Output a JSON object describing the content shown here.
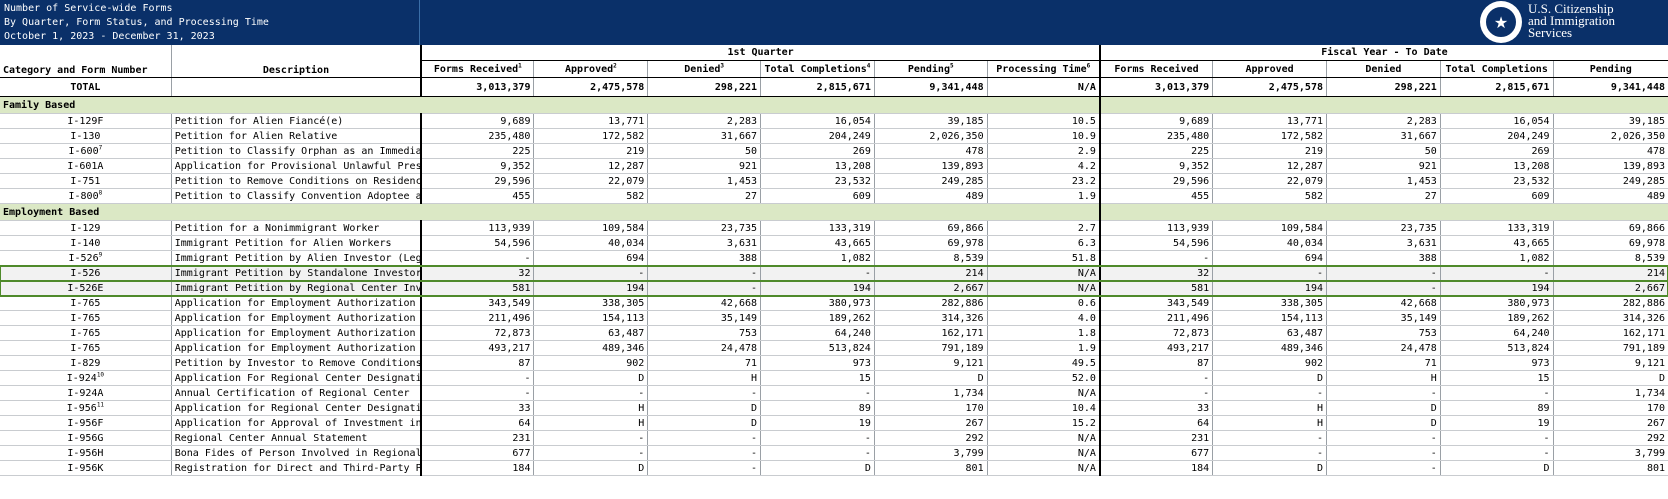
{
  "report": {
    "title_lines": [
      "Number of Service-wide Forms",
      "By Quarter, Form Status, and Processing Time",
      "October 1, 2023 - December 31, 2023"
    ],
    "agency": [
      "U.S. Citizenship",
      "and Immigration",
      "Services"
    ]
  },
  "headers": {
    "category": "Category and Form Number",
    "description": "Description",
    "quarter_group": "1st Quarter",
    "fy_group": "Fiscal Year - To Date",
    "q_cols": [
      "Forms Received",
      "Approved",
      "Denied",
      "Total Completions",
      "Pending",
      "Processing Time"
    ],
    "q_sups": [
      "1",
      "2",
      "3",
      "4",
      "5",
      "6"
    ],
    "fy_cols": [
      "Forms Received",
      "Approved",
      "Denied",
      "Total Completions",
      "Pending"
    ]
  },
  "total": {
    "label": "TOTAL",
    "q": [
      "3,013,379",
      "2,475,578",
      "298,221",
      "2,815,671",
      "9,341,448",
      "N/A"
    ],
    "fy": [
      "3,013,379",
      "2,475,578",
      "298,221",
      "2,815,671",
      "9,341,448"
    ]
  },
  "sections": [
    {
      "name": "Family Based",
      "rows": [
        {
          "form": "I-129F",
          "sup": "",
          "desc": "Petition for Alien Fiancé(e)",
          "q": [
            "9,689",
            "13,771",
            "2,283",
            "16,054",
            "39,185",
            "10.5"
          ],
          "fy": [
            "9,689",
            "13,771",
            "2,283",
            "16,054",
            "39,185"
          ]
        },
        {
          "form": "I-130",
          "sup": "",
          "desc": "Petition for Alien Relative",
          "q": [
            "235,480",
            "172,582",
            "31,667",
            "204,249",
            "2,026,350",
            "10.9"
          ],
          "fy": [
            "235,480",
            "172,582",
            "31,667",
            "204,249",
            "2,026,350"
          ]
        },
        {
          "form": "I-600",
          "sup": "7",
          "desc": "Petition to Classify Orphan as an Immedia",
          "q": [
            "225",
            "219",
            "50",
            "269",
            "478",
            "2.9"
          ],
          "fy": [
            "225",
            "219",
            "50",
            "269",
            "478"
          ]
        },
        {
          "form": "I-601A",
          "sup": "",
          "desc": "Application for Provisional Unlawful Pres",
          "q": [
            "9,352",
            "12,287",
            "921",
            "13,208",
            "139,893",
            "4.2"
          ],
          "fy": [
            "9,352",
            "12,287",
            "921",
            "13,208",
            "139,893"
          ]
        },
        {
          "form": "I-751",
          "sup": "",
          "desc": "Petition to Remove Conditions on Residenc",
          "q": [
            "29,596",
            "22,079",
            "1,453",
            "23,532",
            "249,285",
            "23.2"
          ],
          "fy": [
            "29,596",
            "22,079",
            "1,453",
            "23,532",
            "249,285"
          ]
        },
        {
          "form": "I-800",
          "sup": "8",
          "desc": "Petition to Classify Convention Adoptee a",
          "q": [
            "455",
            "582",
            "27",
            "609",
            "489",
            "1.9"
          ],
          "fy": [
            "455",
            "582",
            "27",
            "609",
            "489"
          ]
        }
      ]
    },
    {
      "name": "Employment Based",
      "rows": [
        {
          "form": "I-129",
          "sup": "",
          "desc": "Petition for a Nonimmigrant Worker",
          "q": [
            "113,939",
            "109,584",
            "23,735",
            "133,319",
            "69,866",
            "2.7"
          ],
          "fy": [
            "113,939",
            "109,584",
            "23,735",
            "133,319",
            "69,866"
          ]
        },
        {
          "form": "I-140",
          "sup": "",
          "desc": "Immigrant Petition for Alien Workers",
          "q": [
            "54,596",
            "40,034",
            "3,631",
            "43,665",
            "69,978",
            "6.3"
          ],
          "fy": [
            "54,596",
            "40,034",
            "3,631",
            "43,665",
            "69,978"
          ]
        },
        {
          "form": "I-526",
          "sup": "9",
          "desc": "Immigrant Petition by Alien Investor (Leg",
          "q": [
            "-",
            "694",
            "388",
            "1,082",
            "8,539",
            "51.8"
          ],
          "fy": [
            "-",
            "694",
            "388",
            "1,082",
            "8,539"
          ]
        },
        {
          "form": "I-526",
          "sup": "",
          "desc": "Immigrant Petition by Standalone Investor",
          "q": [
            "32",
            "-",
            "-",
            "-",
            "214",
            "N/A"
          ],
          "fy": [
            "32",
            "-",
            "-",
            "-",
            "214"
          ],
          "hl": true
        },
        {
          "form": "I-526E",
          "sup": "",
          "desc": "Immigrant Petition by Regional Center Inv",
          "q": [
            "581",
            "194",
            "-",
            "194",
            "2,667",
            "N/A"
          ],
          "fy": [
            "581",
            "194",
            "-",
            "194",
            "2,667"
          ],
          "hl": true
        },
        {
          "form": "I-765",
          "sup": "",
          "desc": "Application for Employment Authorization",
          "q": [
            "343,549",
            "338,305",
            "42,668",
            "380,973",
            "282,886",
            "0.6"
          ],
          "fy": [
            "343,549",
            "338,305",
            "42,668",
            "380,973",
            "282,886"
          ]
        },
        {
          "form": "I-765",
          "sup": "",
          "desc": "Application for Employment Authorization",
          "q": [
            "211,496",
            "154,113",
            "35,149",
            "189,262",
            "314,326",
            "4.0"
          ],
          "fy": [
            "211,496",
            "154,113",
            "35,149",
            "189,262",
            "314,326"
          ]
        },
        {
          "form": "I-765",
          "sup": "",
          "desc": "Application for Employment Authorization",
          "q": [
            "72,873",
            "63,487",
            "753",
            "64,240",
            "162,171",
            "1.8"
          ],
          "fy": [
            "72,873",
            "63,487",
            "753",
            "64,240",
            "162,171"
          ]
        },
        {
          "form": "I-765",
          "sup": "",
          "desc": "Application for Employment Authorization",
          "q": [
            "493,217",
            "489,346",
            "24,478",
            "513,824",
            "791,189",
            "1.9"
          ],
          "fy": [
            "493,217",
            "489,346",
            "24,478",
            "513,824",
            "791,189"
          ]
        },
        {
          "form": "I-829",
          "sup": "",
          "desc": "Petition by Investor to Remove Conditions",
          "q": [
            "87",
            "902",
            "71",
            "973",
            "9,121",
            "49.5"
          ],
          "fy": [
            "87",
            "902",
            "71",
            "973",
            "9,121"
          ]
        },
        {
          "form": "I-924",
          "sup": "10",
          "desc": "Application For Regional Center Designati",
          "q": [
            "-",
            "D",
            "H",
            "15",
            "D",
            "52.0"
          ],
          "fy": [
            "-",
            "D",
            "H",
            "15",
            "D"
          ]
        },
        {
          "form": "I-924A",
          "sup": "",
          "desc": "Annual Certification of Regional Center",
          "q": [
            "-",
            "-",
            "-",
            "-",
            "1,734",
            "N/A"
          ],
          "fy": [
            "-",
            "-",
            "-",
            "-",
            "1,734"
          ]
        },
        {
          "form": "I-956",
          "sup": "11",
          "desc": "Application for Regional Center Designati",
          "q": [
            "33",
            "H",
            "D",
            "89",
            "170",
            "10.4"
          ],
          "fy": [
            "33",
            "H",
            "D",
            "89",
            "170"
          ]
        },
        {
          "form": "I-956F",
          "sup": "",
          "desc": "Application for Approval of Investment in",
          "q": [
            "64",
            "H",
            "D",
            "19",
            "267",
            "15.2"
          ],
          "fy": [
            "64",
            "H",
            "D",
            "19",
            "267"
          ]
        },
        {
          "form": "I-956G",
          "sup": "",
          "desc": "Regional Center Annual Statement",
          "q": [
            "231",
            "-",
            "-",
            "-",
            "292",
            "N/A"
          ],
          "fy": [
            "231",
            "-",
            "-",
            "-",
            "292"
          ]
        },
        {
          "form": "I-956H",
          "sup": "",
          "desc": "Bona Fides of Person Involved in Regional",
          "q": [
            "677",
            "-",
            "-",
            "-",
            "3,799",
            "N/A"
          ],
          "fy": [
            "677",
            "-",
            "-",
            "-",
            "3,799"
          ]
        },
        {
          "form": "I-956K",
          "sup": "",
          "desc": "Registration for Direct and Third-Party P",
          "q": [
            "184",
            "D",
            "-",
            "D",
            "801",
            "N/A"
          ],
          "fy": [
            "184",
            "D",
            "-",
            "D",
            "801"
          ]
        }
      ]
    }
  ]
}
